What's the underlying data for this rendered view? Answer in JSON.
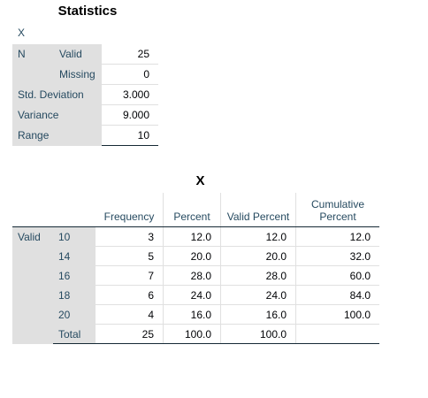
{
  "statistics": {
    "title": "Statistics",
    "variable": "X",
    "rows": [
      {
        "group": "N",
        "label": "Valid",
        "value": "25"
      },
      {
        "group": "",
        "label": "Missing",
        "value": "0"
      },
      {
        "label": "Std. Deviation",
        "value": "3.000"
      },
      {
        "label": "Variance",
        "value": "9.000"
      },
      {
        "label": "Range",
        "value": "10"
      }
    ]
  },
  "frequency": {
    "title": "X",
    "headers": {
      "frequency": "Frequency",
      "percent": "Percent",
      "valid_percent": "Valid Percent",
      "cumulative_percent": "Cumulative Percent"
    },
    "group_label": "Valid",
    "rows": [
      {
        "value": "10",
        "frequency": "3",
        "percent": "12.0",
        "valid_percent": "12.0",
        "cumulative_percent": "12.0"
      },
      {
        "value": "14",
        "frequency": "5",
        "percent": "20.0",
        "valid_percent": "20.0",
        "cumulative_percent": "32.0"
      },
      {
        "value": "16",
        "frequency": "7",
        "percent": "28.0",
        "valid_percent": "28.0",
        "cumulative_percent": "60.0"
      },
      {
        "value": "18",
        "frequency": "6",
        "percent": "24.0",
        "valid_percent": "24.0",
        "cumulative_percent": "84.0"
      },
      {
        "value": "20",
        "frequency": "4",
        "percent": "16.0",
        "valid_percent": "16.0",
        "cumulative_percent": "100.0"
      }
    ],
    "total": {
      "label": "Total",
      "frequency": "25",
      "percent": "100.0",
      "valid_percent": "100.0",
      "cumulative_percent": ""
    }
  },
  "colors": {
    "label_text": "#264a60",
    "value_text": "#010205",
    "row_header_bg": "#e0e0e0",
    "rule": "#152935"
  }
}
